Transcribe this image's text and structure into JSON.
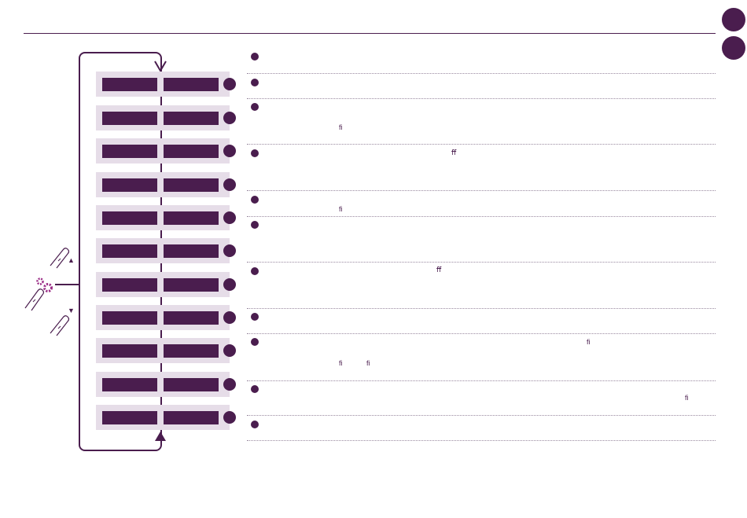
{
  "colors": {
    "accent": "#4a1d4e",
    "row_background": "#e6dde8",
    "gear": "#9b2d87"
  },
  "icons": {
    "finger_up": "finger-up-icon",
    "finger_gear": "finger-gear-icon",
    "finger_down": "finger-down-icon",
    "up_triangle": "▲",
    "down_triangle": "▼"
  },
  "fragments": [
    "ﬁ",
    "ﬀ",
    "ﬁ",
    "ﬀ",
    "ﬁ",
    "ﬁ",
    "ﬁ",
    "ﬁ"
  ]
}
